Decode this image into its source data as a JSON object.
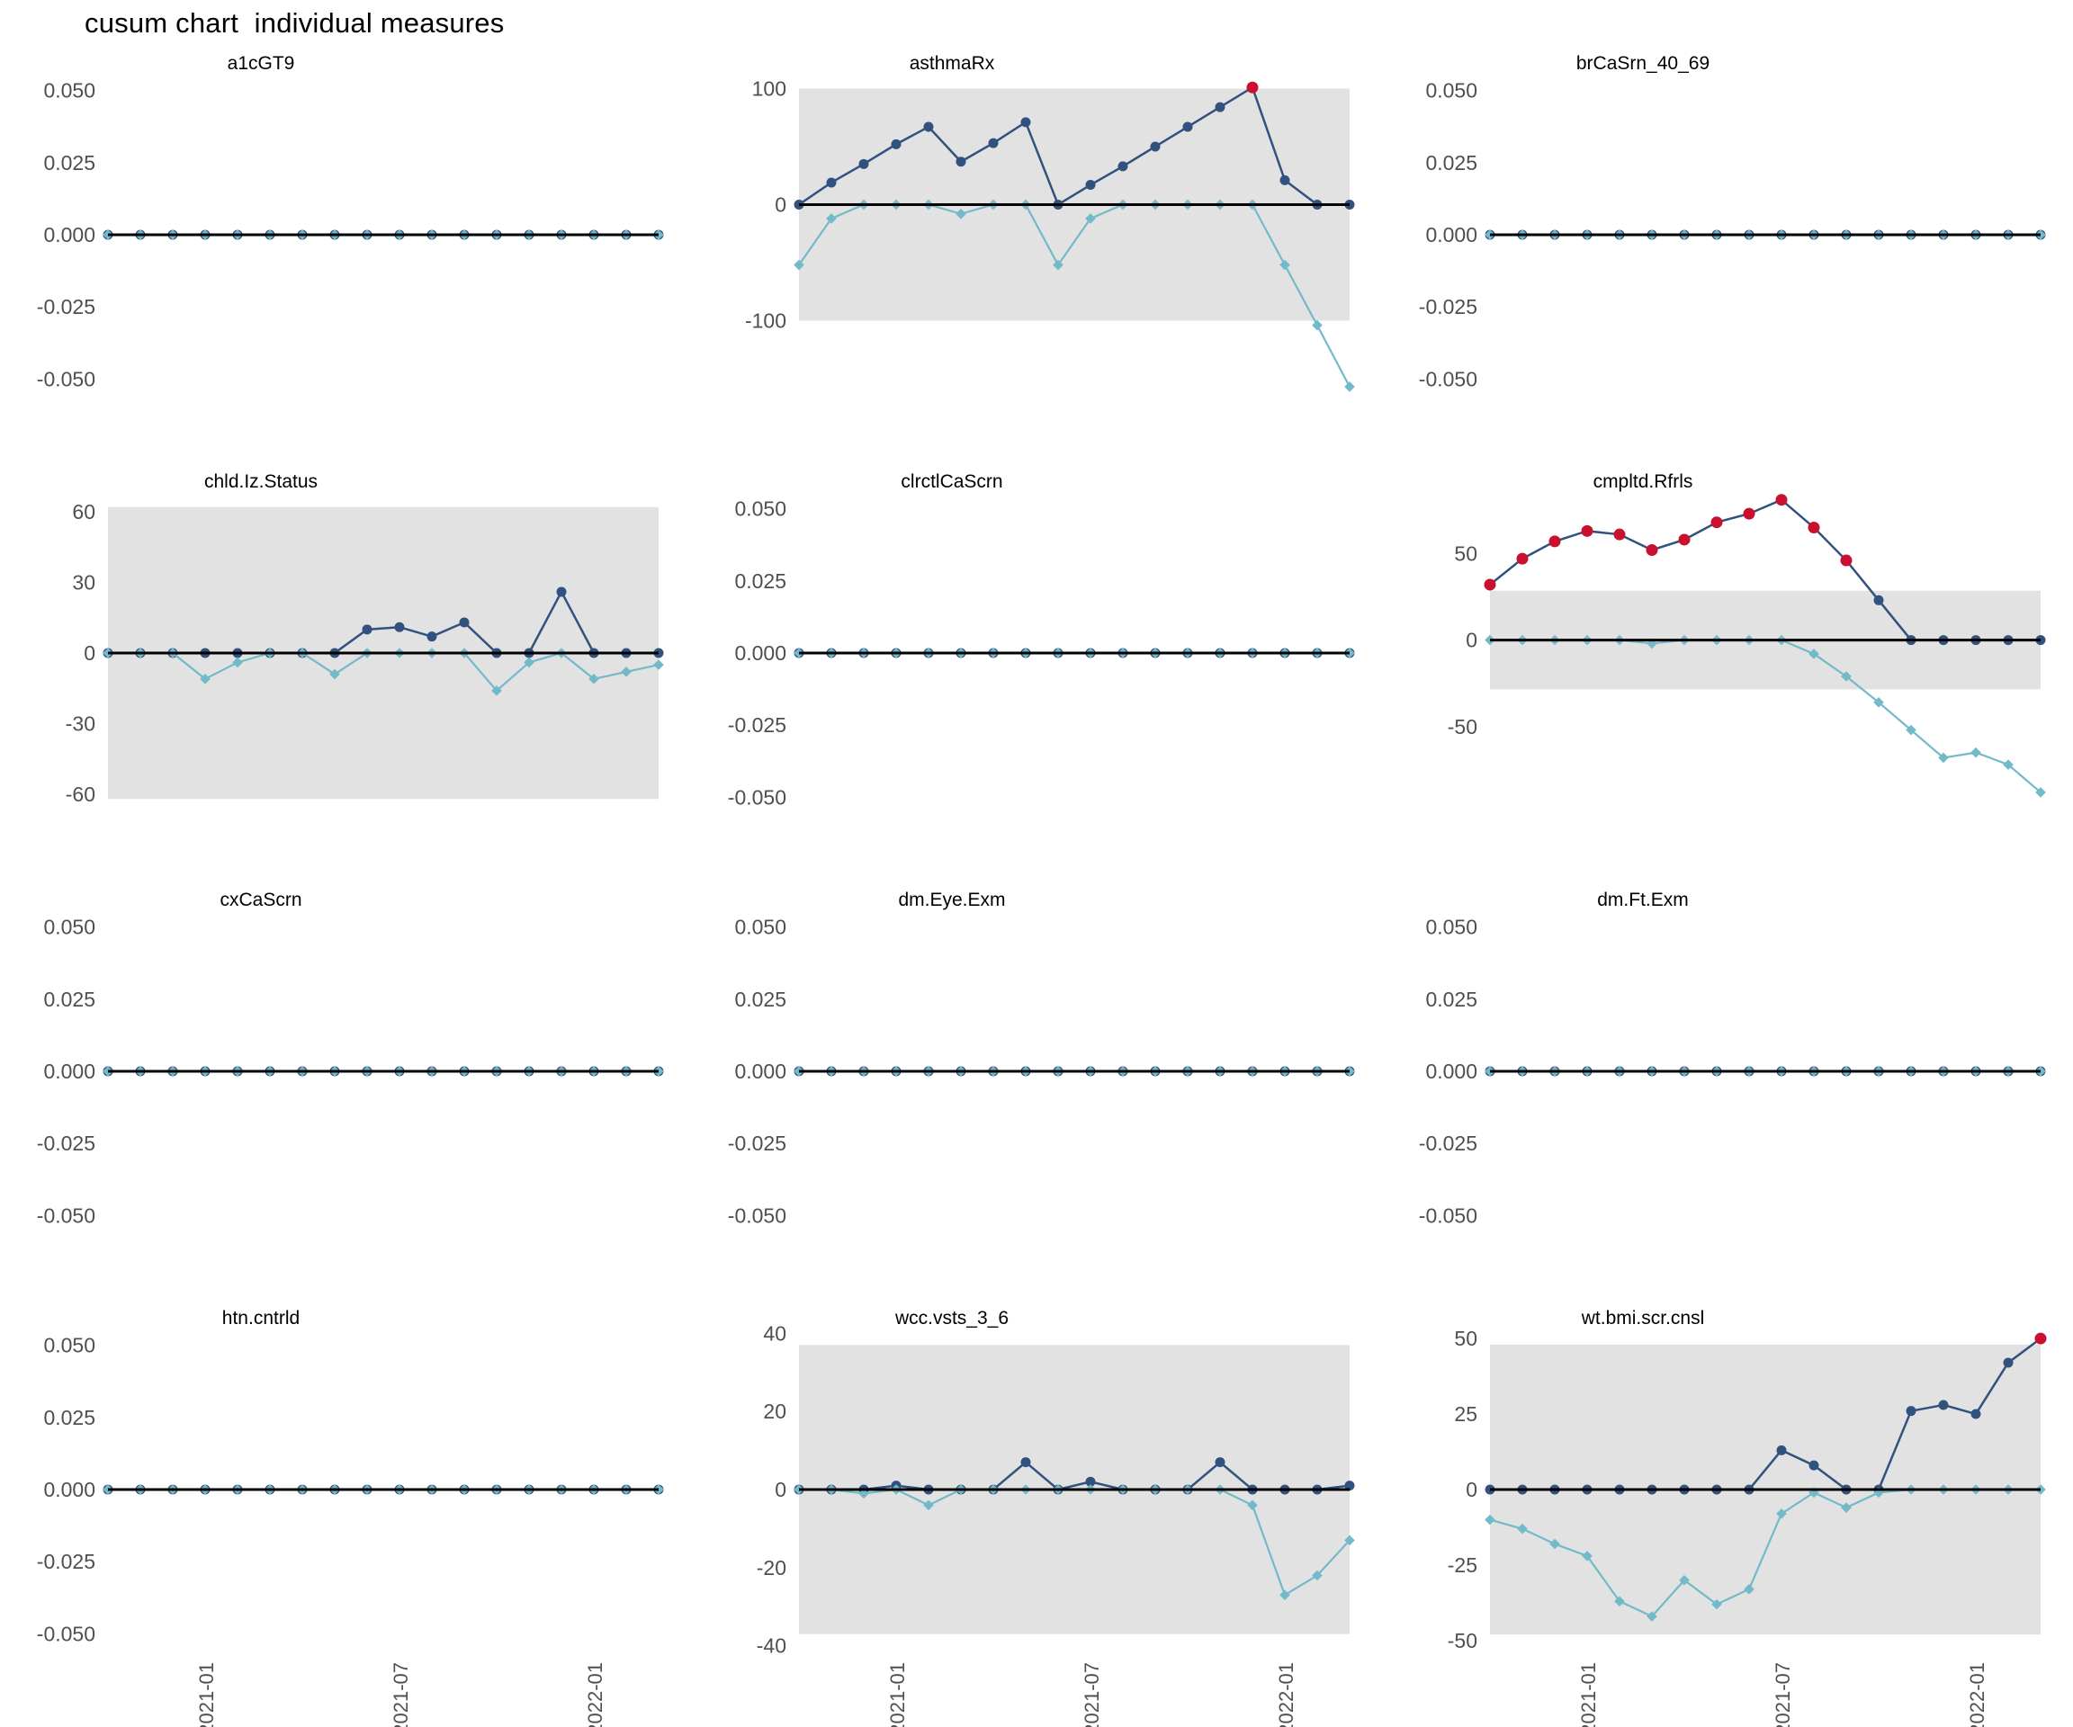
{
  "title": "cusum chart  individual measures",
  "colors": {
    "dark_blue": "#31517e",
    "light_blue": "#72bac9",
    "signal_red": "#c9102e",
    "band_gray": "#e2e2e2",
    "zero_line": "#000000",
    "tick_text": "#4f4f4f",
    "title_text": "#000000"
  },
  "chart_data": {
    "type": "line",
    "layout": "facet_wrap 3 columns x 4 rows, small multiples cusum chart",
    "n_points": 18,
    "legend": "none",
    "grid": "off",
    "x_ticks": {
      "indices": [
        3,
        9,
        15
      ],
      "labels": [
        "2021-01",
        "2021-07",
        "2022-01"
      ],
      "rotation_degrees": 90
    },
    "panels": [
      {
        "id": "a1cGT9",
        "title": "a1cGT9",
        "ylim": [
          -0.0555,
          0.0555
        ],
        "band": null,
        "yticks": [
          {
            "v": 0.05,
            "label": "0.050"
          },
          {
            "v": 0.025,
            "label": "0.025"
          },
          {
            "v": 0,
            "label": "0.000"
          },
          {
            "v": -0.025,
            "label": "-0.025"
          },
          {
            "v": -0.05,
            "label": "-0.050"
          }
        ],
        "series": [
          {
            "name": "positive-cusum",
            "role": "dark",
            "values": [
              0,
              0,
              0,
              0,
              0,
              0,
              0,
              0,
              0,
              0,
              0,
              0,
              0,
              0,
              0,
              0,
              0,
              0
            ],
            "signal_indices": []
          },
          {
            "name": "negative-cusum",
            "role": "light",
            "values": [
              0,
              0,
              0,
              0,
              0,
              0,
              0,
              0,
              0,
              0,
              0,
              0,
              0,
              0,
              0,
              0,
              0,
              0
            ]
          }
        ]
      },
      {
        "id": "asthmaRx",
        "title": "asthmaRx",
        "ylim": [
          -164,
          112
        ],
        "band": [
          -100,
          100
        ],
        "yticks": [
          {
            "v": 100,
            "label": "100"
          },
          {
            "v": 0,
            "label": "0"
          },
          {
            "v": -100,
            "label": "-100"
          }
        ],
        "series": [
          {
            "name": "positive-cusum",
            "role": "dark",
            "values": [
              0,
              19,
              35,
              52,
              67,
              37,
              53,
              71,
              0,
              17,
              33,
              50,
              67,
              84,
              101,
              21,
              0,
              0
            ],
            "signal_indices": [
              14
            ]
          },
          {
            "name": "negative-cusum",
            "role": "light",
            "values": [
              -52,
              -12,
              0,
              0,
              0,
              -8,
              0,
              0,
              -52,
              -12,
              0,
              0,
              0,
              0,
              0,
              -52,
              -104,
              -157
            ]
          }
        ]
      },
      {
        "id": "brCaSrn_40_69",
        "title": "brCaSrn_40_69",
        "ylim": [
          -0.0555,
          0.0555
        ],
        "band": null,
        "yticks": [
          {
            "v": 0.05,
            "label": "0.050"
          },
          {
            "v": 0.025,
            "label": "0.025"
          },
          {
            "v": 0,
            "label": "0.000"
          },
          {
            "v": -0.025,
            "label": "-0.025"
          },
          {
            "v": -0.05,
            "label": "-0.050"
          }
        ],
        "series": [
          {
            "name": "positive-cusum",
            "role": "dark",
            "values": [
              0,
              0,
              0,
              0,
              0,
              0,
              0,
              0,
              0,
              0,
              0,
              0,
              0,
              0,
              0,
              0,
              0,
              0
            ],
            "signal_indices": []
          },
          {
            "name": "negative-cusum",
            "role": "light",
            "values": [
              0,
              0,
              0,
              0,
              0,
              0,
              0,
              0,
              0,
              0,
              0,
              0,
              0,
              0,
              0,
              0,
              0,
              0
            ]
          }
        ]
      },
      {
        "id": "chld.Iz.Status",
        "title": "chld.Iz.Status",
        "ylim": [
          -68,
          68
        ],
        "band": [
          -62,
          62
        ],
        "yticks": [
          {
            "v": 60,
            "label": "60"
          },
          {
            "v": 30,
            "label": "30"
          },
          {
            "v": 0,
            "label": "0"
          },
          {
            "v": -30,
            "label": "-30"
          },
          {
            "v": -60,
            "label": "-60"
          }
        ],
        "series": [
          {
            "name": "positive-cusum",
            "role": "dark",
            "values": [
              0,
              0,
              0,
              0,
              0,
              0,
              0,
              0,
              10,
              11,
              7,
              13,
              0,
              0,
              26,
              0,
              0,
              0
            ],
            "signal_indices": []
          },
          {
            "name": "negative-cusum",
            "role": "light",
            "values": [
              0,
              0,
              0,
              -11,
              -4,
              0,
              0,
              -9,
              0,
              0,
              0,
              0,
              -16,
              -4,
              0,
              -11,
              -8,
              -5
            ]
          }
        ]
      },
      {
        "id": "clrctlCaScrn",
        "title": "clrctlCaScrn",
        "ylim": [
          -0.0555,
          0.0555
        ],
        "band": null,
        "yticks": [
          {
            "v": 0.05,
            "label": "0.050"
          },
          {
            "v": 0.025,
            "label": "0.025"
          },
          {
            "v": 0,
            "label": "0.000"
          },
          {
            "v": -0.025,
            "label": "-0.025"
          },
          {
            "v": -0.05,
            "label": "-0.050"
          }
        ],
        "series": [
          {
            "name": "positive-cusum",
            "role": "dark",
            "values": [
              0,
              0,
              0,
              0,
              0,
              0,
              0,
              0,
              0,
              0,
              0,
              0,
              0,
              0,
              0,
              0,
              0,
              0
            ],
            "signal_indices": []
          },
          {
            "name": "negative-cusum",
            "role": "light",
            "values": [
              0,
              0,
              0,
              0,
              0,
              0,
              0,
              0,
              0,
              0,
              0,
              0,
              0,
              0,
              0,
              0,
              0,
              0
            ]
          }
        ]
      },
      {
        "id": "cmpltd.Rfrls",
        "title": "cmpltd.Rfrls",
        "ylim": [
          -100,
          85
        ],
        "band": [
          -28.5,
          28.5
        ],
        "yticks": [
          {
            "v": 50,
            "label": "50"
          },
          {
            "v": 0,
            "label": "0"
          },
          {
            "v": -50,
            "label": "-50"
          }
        ],
        "series": [
          {
            "name": "positive-cusum",
            "role": "dark",
            "values": [
              32,
              47,
              57,
              63,
              61,
              52,
              58,
              68,
              73,
              81,
              65,
              46,
              23,
              0,
              0,
              0,
              0,
              0
            ],
            "signal_indices": [
              0,
              1,
              2,
              3,
              4,
              5,
              6,
              7,
              8,
              9,
              10,
              11
            ]
          },
          {
            "name": "negative-cusum",
            "role": "light",
            "values": [
              0,
              0,
              0,
              0,
              0,
              -2,
              0,
              0,
              0,
              0,
              -8,
              -21,
              -36,
              -52,
              -68,
              -65,
              -72,
              -88
            ]
          }
        ]
      },
      {
        "id": "cxCaScrn",
        "title": "cxCaScrn",
        "ylim": [
          -0.0555,
          0.0555
        ],
        "band": null,
        "yticks": [
          {
            "v": 0.05,
            "label": "0.050"
          },
          {
            "v": 0.025,
            "label": "0.025"
          },
          {
            "v": 0,
            "label": "0.000"
          },
          {
            "v": -0.025,
            "label": "-0.025"
          },
          {
            "v": -0.05,
            "label": "-0.050"
          }
        ],
        "series": [
          {
            "name": "positive-cusum",
            "role": "dark",
            "values": [
              0,
              0,
              0,
              0,
              0,
              0,
              0,
              0,
              0,
              0,
              0,
              0,
              0,
              0,
              0,
              0,
              0,
              0
            ],
            "signal_indices": []
          },
          {
            "name": "negative-cusum",
            "role": "light",
            "values": [
              0,
              0,
              0,
              0,
              0,
              0,
              0,
              0,
              0,
              0,
              0,
              0,
              0,
              0,
              0,
              0,
              0,
              0
            ]
          }
        ]
      },
      {
        "id": "dm.Eye.Exm",
        "title": "dm.Eye.Exm",
        "ylim": [
          -0.0555,
          0.0555
        ],
        "band": null,
        "yticks": [
          {
            "v": 0.05,
            "label": "0.050"
          },
          {
            "v": 0.025,
            "label": "0.025"
          },
          {
            "v": 0,
            "label": "0.000"
          },
          {
            "v": -0.025,
            "label": "-0.025"
          },
          {
            "v": -0.05,
            "label": "-0.050"
          }
        ],
        "series": [
          {
            "name": "positive-cusum",
            "role": "dark",
            "values": [
              0,
              0,
              0,
              0,
              0,
              0,
              0,
              0,
              0,
              0,
              0,
              0,
              0,
              0,
              0,
              0,
              0,
              0
            ],
            "signal_indices": []
          },
          {
            "name": "negative-cusum",
            "role": "light",
            "values": [
              0,
              0,
              0,
              0,
              0,
              0,
              0,
              0,
              0,
              0,
              0,
              0,
              0,
              0,
              0,
              0,
              0,
              0
            ]
          }
        ]
      },
      {
        "id": "dm.Ft.Exm",
        "title": "dm.Ft.Exm",
        "ylim": [
          -0.0555,
          0.0555
        ],
        "band": null,
        "yticks": [
          {
            "v": 0.05,
            "label": "0.050"
          },
          {
            "v": 0.025,
            "label": "0.025"
          },
          {
            "v": 0,
            "label": "0.000"
          },
          {
            "v": -0.025,
            "label": "-0.025"
          },
          {
            "v": -0.05,
            "label": "-0.050"
          }
        ],
        "series": [
          {
            "name": "positive-cusum",
            "role": "dark",
            "values": [
              0,
              0,
              0,
              0,
              0,
              0,
              0,
              0,
              0,
              0,
              0,
              0,
              0,
              0,
              0,
              0,
              0,
              0
            ],
            "signal_indices": []
          },
          {
            "name": "negative-cusum",
            "role": "light",
            "values": [
              0,
              0,
              0,
              0,
              0,
              0,
              0,
              0,
              0,
              0,
              0,
              0,
              0,
              0,
              0,
              0,
              0,
              0
            ]
          }
        ]
      },
      {
        "id": "htn.cntrld",
        "title": "htn.cntrld",
        "ylim": [
          -0.0555,
          0.0555
        ],
        "band": null,
        "yticks": [
          {
            "v": 0.05,
            "label": "0.050"
          },
          {
            "v": 0.025,
            "label": "0.025"
          },
          {
            "v": 0,
            "label": "0.000"
          },
          {
            "v": -0.025,
            "label": "-0.025"
          },
          {
            "v": -0.05,
            "label": "-0.050"
          }
        ],
        "series": [
          {
            "name": "positive-cusum",
            "role": "dark",
            "values": [
              0,
              0,
              0,
              0,
              0,
              0,
              0,
              0,
              0,
              0,
              0,
              0,
              0,
              0,
              0,
              0,
              0,
              0
            ],
            "signal_indices": []
          },
          {
            "name": "negative-cusum",
            "role": "light",
            "values": [
              0,
              0,
              0,
              0,
              0,
              0,
              0,
              0,
              0,
              0,
              0,
              0,
              0,
              0,
              0,
              0,
              0,
              0
            ]
          }
        ]
      },
      {
        "id": "wcc.vsts_3_6",
        "title": "wcc.vsts_3_6",
        "ylim": [
          -41,
          41
        ],
        "band": [
          -37,
          37
        ],
        "yticks": [
          {
            "v": 40,
            "label": "40"
          },
          {
            "v": 20,
            "label": "20"
          },
          {
            "v": 0,
            "label": "0"
          },
          {
            "v": -20,
            "label": "-20"
          },
          {
            "v": -40,
            "label": "-40"
          }
        ],
        "series": [
          {
            "name": "positive-cusum",
            "role": "dark",
            "values": [
              0,
              0,
              0,
              1,
              0,
              0,
              0,
              7,
              0,
              2,
              0,
              0,
              0,
              7,
              0,
              0,
              0,
              1
            ],
            "signal_indices": []
          },
          {
            "name": "negative-cusum",
            "role": "light",
            "values": [
              0,
              0,
              -1,
              0,
              -4,
              0,
              0,
              0,
              0,
              0,
              0,
              0,
              0,
              0,
              -4,
              -27,
              -22,
              -13
            ]
          }
        ]
      },
      {
        "id": "wt.bmi.scr.cnsl",
        "title": "wt.bmi.scr.cnsl",
        "ylim": [
          -53,
          53
        ],
        "band": [
          -48,
          48
        ],
        "yticks": [
          {
            "v": 50,
            "label": "50"
          },
          {
            "v": 25,
            "label": "25"
          },
          {
            "v": 0,
            "label": "0"
          },
          {
            "v": -25,
            "label": "-25"
          },
          {
            "v": -50,
            "label": "-50"
          }
        ],
        "series": [
          {
            "name": "positive-cusum",
            "role": "dark",
            "values": [
              0,
              0,
              0,
              0,
              0,
              0,
              0,
              0,
              0,
              13,
              8,
              0,
              0,
              26,
              28,
              25,
              42,
              50
            ],
            "signal_indices": [
              17
            ]
          },
          {
            "name": "negative-cusum",
            "role": "light",
            "values": [
              -10,
              -13,
              -18,
              -22,
              -37,
              -42,
              -30,
              -38,
              -33,
              -8,
              -1,
              -6,
              -1,
              0,
              0,
              0,
              0,
              0
            ]
          }
        ]
      }
    ]
  }
}
